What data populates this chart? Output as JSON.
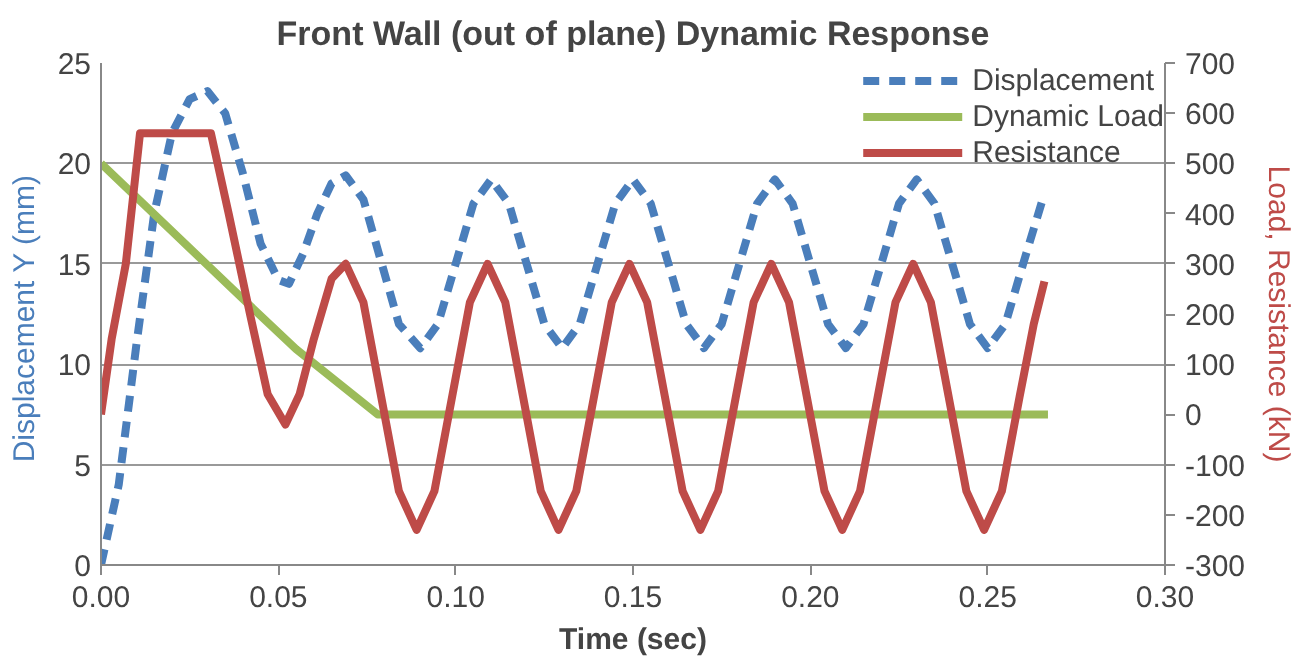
{
  "chart_data": {
    "type": "line",
    "title": "Front Wall (out of plane) Dynamic Response",
    "xlabel": "Time (sec)",
    "ylabel": "Displacement  Y (mm)",
    "y2label": "Load, Resistance (kN)",
    "xlim": [
      0,
      0.3
    ],
    "xticks": [
      {
        "value": 0,
        "label": "0.00"
      },
      {
        "value": 0.05,
        "label": "0.05"
      },
      {
        "value": 0.1,
        "label": "0.10"
      },
      {
        "value": 0.15,
        "label": "0.15"
      },
      {
        "value": 0.2,
        "label": "0.20"
      },
      {
        "value": 0.25,
        "label": "0.25"
      },
      {
        "value": 0.3,
        "label": "0.30"
      }
    ],
    "ylim": [
      0,
      25
    ],
    "yticks": [
      0,
      5,
      10,
      15,
      20,
      25
    ],
    "y2lim": [
      -300,
      700
    ],
    "y2ticks": [
      -300,
      -200,
      -100,
      0,
      100,
      200,
      300,
      400,
      500,
      600,
      700
    ],
    "grid": "y",
    "legend": "top right",
    "marker": "none",
    "series": [
      {
        "name": "Displacement",
        "color": "#4a7ebb",
        "line_style": "dashed",
        "x": [
          0,
          0.005,
          0.01,
          0.015,
          0.02,
          0.025,
          0.03,
          0.035,
          0.04,
          0.045,
          0.05,
          0.053,
          0.057,
          0.061,
          0.065,
          0.069,
          0.074,
          0.079,
          0.084,
          0.09,
          0.095,
          0.1,
          0.105,
          0.11,
          0.115,
          0.12,
          0.125,
          0.13,
          0.135,
          0.14,
          0.145,
          0.15,
          0.155,
          0.16,
          0.165,
          0.17,
          0.175,
          0.18,
          0.185,
          0.19,
          0.195,
          0.2,
          0.205,
          0.21,
          0.215,
          0.22,
          0.225,
          0.23,
          0.235,
          0.24,
          0.245,
          0.25,
          0.255,
          0.26,
          0.266
        ],
        "values": [
          0,
          4,
          11,
          17.5,
          21.5,
          23.2,
          23.6,
          22.5,
          19.5,
          16,
          14.2,
          14,
          15.5,
          17.5,
          19,
          19.4,
          18.2,
          15.1,
          12,
          10.8,
          12,
          15,
          18,
          19.2,
          18,
          15,
          12,
          10.8,
          12,
          15,
          18,
          19.2,
          18,
          15,
          12,
          10.8,
          12,
          15,
          18,
          19.2,
          18,
          15,
          12,
          10.8,
          12,
          15,
          18,
          19.2,
          18,
          15,
          12,
          10.8,
          12,
          15,
          18.5
        ]
      },
      {
        "name": "Dynamic Load",
        "color": "#9bbb59",
        "axis": "y2",
        "x": [
          0,
          0.04,
          0.055,
          0.078,
          0.267
        ],
        "values": [
          500,
          230,
          130,
          0,
          0
        ]
      },
      {
        "name": "Resistance",
        "color": "#be4b48",
        "axis": "y2",
        "x": [
          0,
          0.003,
          0.007,
          0.011,
          0.031,
          0.036,
          0.042,
          0.047,
          0.052,
          0.056,
          0.06,
          0.065,
          0.069,
          0.074,
          0.079,
          0.084,
          0.089,
          0.094,
          0.099,
          0.104,
          0.109,
          0.114,
          0.119,
          0.124,
          0.129,
          0.134,
          0.139,
          0.144,
          0.149,
          0.154,
          0.159,
          0.164,
          0.169,
          0.174,
          0.179,
          0.184,
          0.189,
          0.194,
          0.199,
          0.204,
          0.209,
          0.214,
          0.219,
          0.224,
          0.229,
          0.234,
          0.239,
          0.244,
          0.249,
          0.254,
          0.259,
          0.263,
          0.266
        ],
        "values": [
          0,
          150,
          300,
          560,
          560,
          400,
          200,
          40,
          -20,
          40,
          150,
          270,
          300,
          223,
          35,
          -153,
          -230,
          -153,
          35,
          223,
          300,
          223,
          35,
          -153,
          -230,
          -153,
          35,
          223,
          300,
          223,
          35,
          -153,
          -230,
          -153,
          35,
          223,
          300,
          223,
          35,
          -153,
          -230,
          -153,
          35,
          223,
          300,
          223,
          35,
          -153,
          -230,
          -153,
          35,
          180,
          265
        ]
      }
    ]
  }
}
